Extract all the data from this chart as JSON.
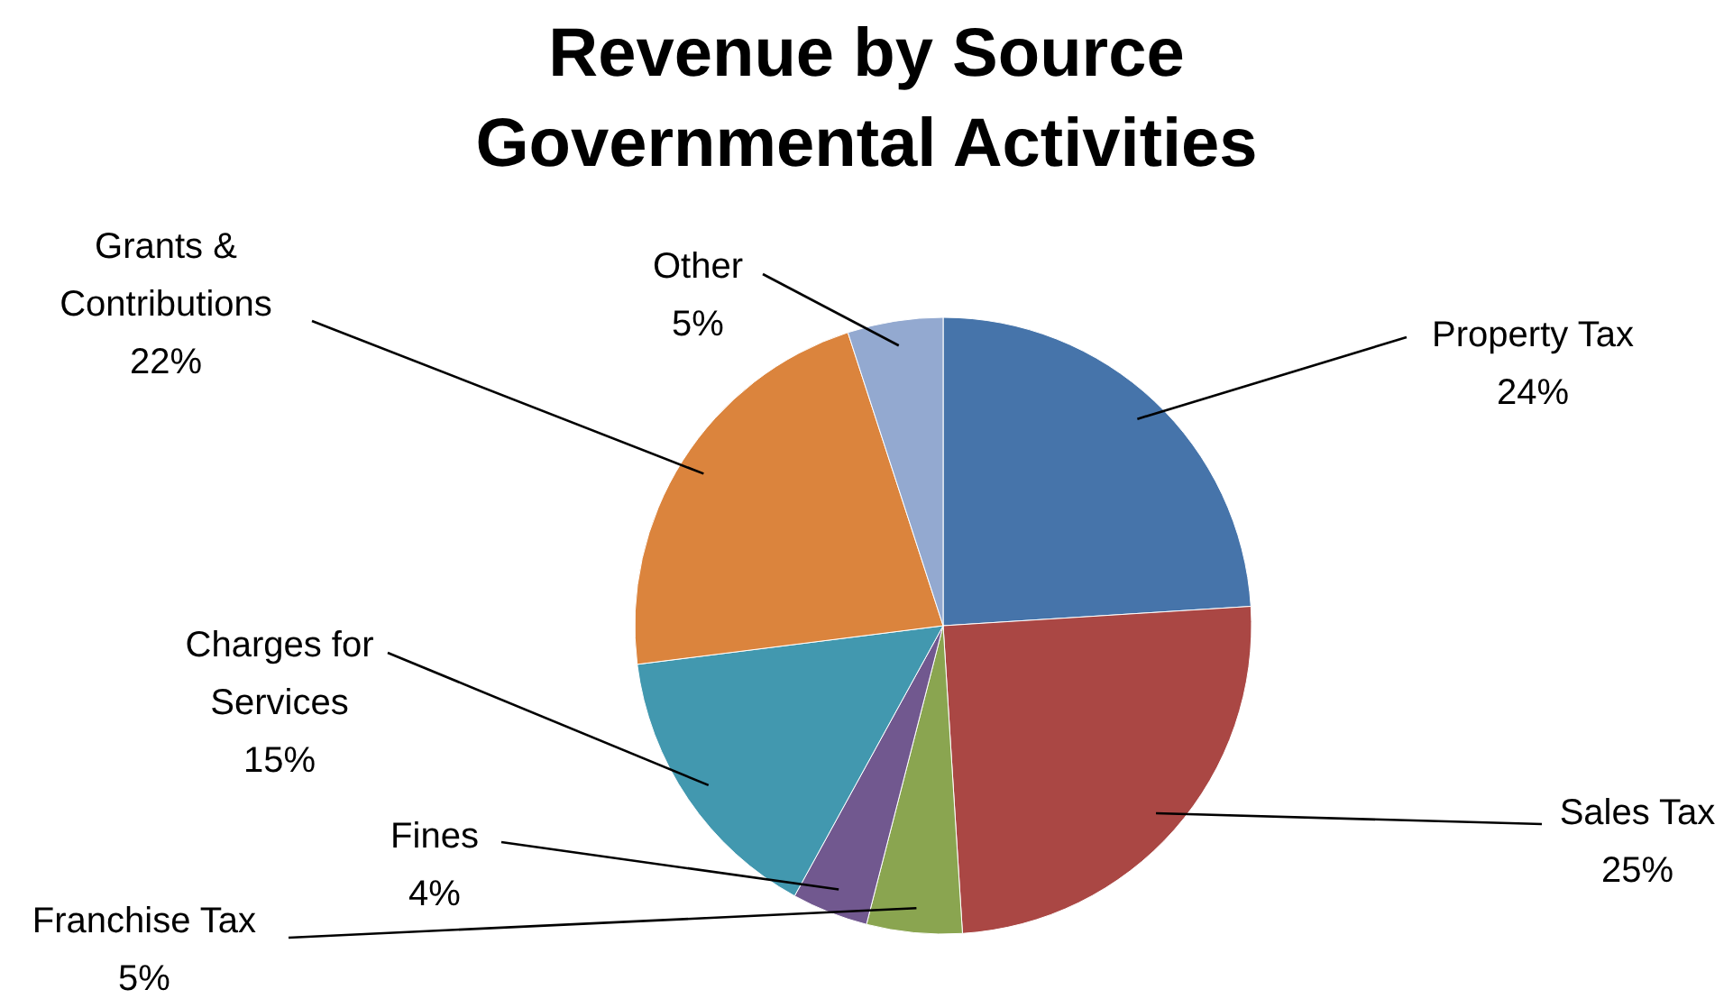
{
  "chart_data": {
    "type": "pie",
    "title": "Revenue by Source\nGovernmental Activities",
    "categories": [
      "Property Tax",
      "Sales Tax",
      "Franchise Tax",
      "Fines",
      "Charges for Services",
      "Grants & Contributions",
      "Other"
    ],
    "values": [
      24,
      25,
      5,
      4,
      15,
      22,
      5
    ],
    "value_labels": [
      "24%",
      "25%",
      "5%",
      "4%",
      "15%",
      "22%",
      "5%"
    ],
    "colors": [
      "#4674aa",
      "#aa4744",
      "#8aa550",
      "#71588f",
      "#4298af",
      "#db843d",
      "#93a9d0"
    ]
  }
}
